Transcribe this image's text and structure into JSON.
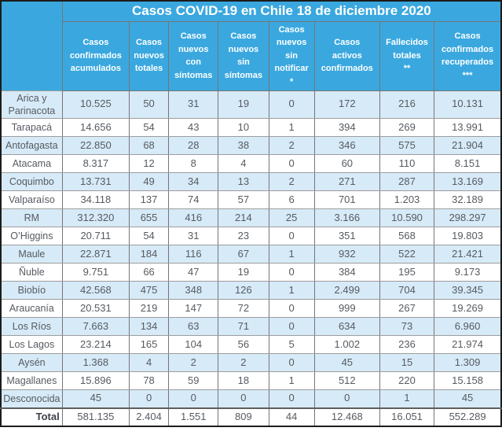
{
  "title": "Casos COVID-19 en Chile 18 de diciembre 2020",
  "colors": {
    "header_blue": "#3aa8df",
    "row_stripe_blue": "#d7eaf8",
    "row_white": "#ffffff",
    "header_text": "#ffffff",
    "body_text": "#565b61",
    "outer_border": "#1c1c1c"
  },
  "chart_data": {
    "type": "table",
    "title": "Casos COVID-19 en Chile 18 de diciembre 2020",
    "region_column_header": "",
    "columns": [
      "Casos\nconfirmados\nacumulados",
      "Casos\nnuevos\ntotales",
      "Casos\nnuevos\ncon\nsíntomas",
      "Casos\nnuevos\nsin\nsíntomas",
      "Casos\nnuevos\nsin\nnotificar\n*",
      "Casos\nactivos\nconfirmados",
      "Fallecidos\ntotales\n**",
      "Casos\nconfirmados\nrecuperados\n***"
    ],
    "rows": [
      {
        "region": "Arica y Parinacota",
        "values": [
          "10.525",
          "50",
          "31",
          "19",
          "0",
          "172",
          "216",
          "10.131"
        ]
      },
      {
        "region": "Tarapacá",
        "values": [
          "14.656",
          "54",
          "43",
          "10",
          "1",
          "394",
          "269",
          "13.991"
        ]
      },
      {
        "region": "Antofagasta",
        "values": [
          "22.850",
          "68",
          "28",
          "38",
          "2",
          "346",
          "575",
          "21.904"
        ]
      },
      {
        "region": "Atacama",
        "values": [
          "8.317",
          "12",
          "8",
          "4",
          "0",
          "60",
          "110",
          "8.151"
        ]
      },
      {
        "region": "Coquimbo",
        "values": [
          "13.731",
          "49",
          "34",
          "13",
          "2",
          "271",
          "287",
          "13.169"
        ]
      },
      {
        "region": "Valparaíso",
        "values": [
          "34.118",
          "137",
          "74",
          "57",
          "6",
          "701",
          "1.203",
          "32.189"
        ]
      },
      {
        "region": "RM",
        "values": [
          "312.320",
          "655",
          "416",
          "214",
          "25",
          "3.166",
          "10.590",
          "298.297"
        ]
      },
      {
        "region": "O’Higgins",
        "values": [
          "20.711",
          "54",
          "31",
          "23",
          "0",
          "351",
          "568",
          "19.803"
        ]
      },
      {
        "region": "Maule",
        "values": [
          "22.871",
          "184",
          "116",
          "67",
          "1",
          "932",
          "522",
          "21.421"
        ]
      },
      {
        "region": "Ñuble",
        "values": [
          "9.751",
          "66",
          "47",
          "19",
          "0",
          "384",
          "195",
          "9.173"
        ]
      },
      {
        "region": "Biobío",
        "values": [
          "42.568",
          "475",
          "348",
          "126",
          "1",
          "2.499",
          "704",
          "39.345"
        ]
      },
      {
        "region": "Araucanía",
        "values": [
          "20.531",
          "219",
          "147",
          "72",
          "0",
          "999",
          "267",
          "19.269"
        ]
      },
      {
        "region": "Los Ríos",
        "values": [
          "7.663",
          "134",
          "63",
          "71",
          "0",
          "634",
          "73",
          "6.960"
        ]
      },
      {
        "region": "Los Lagos",
        "values": [
          "23.214",
          "165",
          "104",
          "56",
          "5",
          "1.002",
          "236",
          "21.974"
        ]
      },
      {
        "region": "Aysén",
        "values": [
          "1.368",
          "4",
          "2",
          "2",
          "0",
          "45",
          "15",
          "1.309"
        ]
      },
      {
        "region": "Magallanes",
        "values": [
          "15.896",
          "78",
          "59",
          "18",
          "1",
          "512",
          "220",
          "15.158"
        ]
      },
      {
        "region": "Desconocida",
        "values": [
          "45",
          "0",
          "0",
          "0",
          "0",
          "0",
          "1",
          "45"
        ]
      }
    ],
    "total_row": {
      "label": "Total",
      "values": [
        "581.135",
        "2.404",
        "1.551",
        "809",
        "44",
        "12.468",
        "16.051",
        "552.289"
      ]
    }
  }
}
